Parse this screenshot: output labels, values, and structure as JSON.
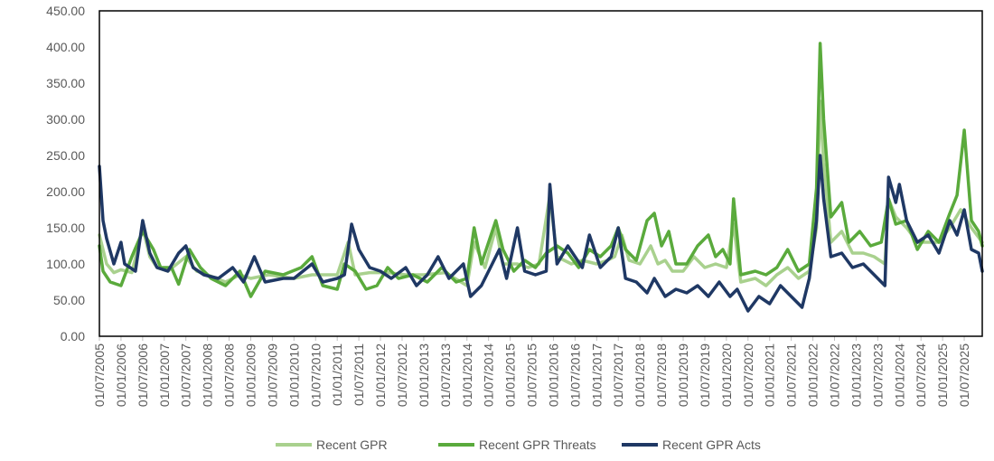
{
  "chart_data": {
    "type": "line",
    "title": "",
    "xlabel": "",
    "ylabel": "",
    "ylim": [
      0,
      450
    ],
    "y_ticks": [
      "0.00",
      "50.00",
      "100.00",
      "150.00",
      "200.00",
      "250.00",
      "300.00",
      "350.00",
      "400.00",
      "450.00"
    ],
    "x_start": "2005-07",
    "x_end": "2025-12",
    "x_tick_labels": [
      "01/07/2005",
      "01/01/2006",
      "01/07/2006",
      "01/01/2007",
      "01/07/2007",
      "01/01/2008",
      "01/07/2008",
      "01/01/2009",
      "01/07/2009",
      "01/01/2010",
      "01/07/2010",
      "01/01/2011",
      "01/07/2011",
      "01/01/2012",
      "01/07/2012",
      "01/01/2013",
      "01/07/2013",
      "01/01/2014",
      "01/07/2014",
      "01/01/2015",
      "01/07/2015",
      "01/01/2016",
      "01/07/2016",
      "01/01/2017",
      "01/07/2017",
      "01/01/2018",
      "01/07/2018",
      "01/01/2019",
      "01/07/2019",
      "01/01/2020",
      "01/07/2020",
      "01/01/2021",
      "01/07/2021",
      "01/01/2022",
      "01/07/2022",
      "01/01/2023",
      "01/07/2023",
      "01/01/2024",
      "01/07/2024",
      "01/01/2025",
      "01/07/2025"
    ],
    "grid": false,
    "legend_position": "bottom",
    "series": [
      {
        "name": "Recent GPR",
        "color": "#a9d18e",
        "points": [
          [
            "2005-07",
            140
          ],
          [
            "2005-09",
            100
          ],
          [
            "2005-11",
            88
          ],
          [
            "2006-01",
            92
          ],
          [
            "2006-04",
            88
          ],
          [
            "2006-07",
            150
          ],
          [
            "2006-09",
            110
          ],
          [
            "2006-11",
            95
          ],
          [
            "2007-02",
            90
          ],
          [
            "2007-07",
            110
          ],
          [
            "2007-10",
            90
          ],
          [
            "2008-01",
            85
          ],
          [
            "2008-06",
            75
          ],
          [
            "2008-10",
            85
          ],
          [
            "2009-01",
            80
          ],
          [
            "2009-06",
            85
          ],
          [
            "2010-01",
            80
          ],
          [
            "2010-06",
            85
          ],
          [
            "2011-01",
            85
          ],
          [
            "2011-04",
            130
          ],
          [
            "2011-06",
            85
          ],
          [
            "2011-10",
            88
          ],
          [
            "2012-03",
            88
          ],
          [
            "2012-08",
            85
          ],
          [
            "2013-01",
            85
          ],
          [
            "2013-07",
            88
          ],
          [
            "2014-01",
            70
          ],
          [
            "2014-03",
            130
          ],
          [
            "2014-06",
            95
          ],
          [
            "2014-09",
            150
          ],
          [
            "2014-11",
            100
          ],
          [
            "2015-03",
            100
          ],
          [
            "2015-06",
            95
          ],
          [
            "2015-09",
            100
          ],
          [
            "2015-12",
            195
          ],
          [
            "2016-02",
            110
          ],
          [
            "2016-06",
            100
          ],
          [
            "2016-09",
            105
          ],
          [
            "2017-01",
            100
          ],
          [
            "2017-04",
            105
          ],
          [
            "2017-06",
            110
          ],
          [
            "2017-08",
            140
          ],
          [
            "2017-10",
            105
          ],
          [
            "2018-01",
            100
          ],
          [
            "2018-04",
            125
          ],
          [
            "2018-06",
            100
          ],
          [
            "2018-08",
            105
          ],
          [
            "2018-10",
            90
          ],
          [
            "2019-01",
            90
          ],
          [
            "2019-04",
            110
          ],
          [
            "2019-07",
            95
          ],
          [
            "2019-10",
            100
          ],
          [
            "2020-01",
            95
          ],
          [
            "2020-03",
            155
          ],
          [
            "2020-05",
            75
          ],
          [
            "2020-09",
            80
          ],
          [
            "2020-12",
            70
          ],
          [
            "2021-03",
            85
          ],
          [
            "2021-06",
            95
          ],
          [
            "2021-09",
            80
          ],
          [
            "2021-12",
            90
          ],
          [
            "2022-02",
            150
          ],
          [
            "2022-03",
            325
          ],
          [
            "2022-04",
            240
          ],
          [
            "2022-06",
            130
          ],
          [
            "2022-09",
            145
          ],
          [
            "2022-12",
            115
          ],
          [
            "2023-03",
            115
          ],
          [
            "2023-06",
            110
          ],
          [
            "2023-09",
            100
          ],
          [
            "2023-10",
            190
          ],
          [
            "2023-12",
            165
          ],
          [
            "2024-03",
            150
          ],
          [
            "2024-06",
            130
          ],
          [
            "2024-09",
            130
          ],
          [
            "2024-12",
            130
          ],
          [
            "2025-03",
            150
          ],
          [
            "2025-06",
            175
          ],
          [
            "2025-09",
            150
          ],
          [
            "2025-12",
            130
          ]
        ]
      },
      {
        "name": "Recent GPR Threats",
        "color": "#5aaa3c",
        "points": [
          [
            "2005-07",
            125
          ],
          [
            "2005-08",
            90
          ],
          [
            "2005-10",
            75
          ],
          [
            "2006-01",
            70
          ],
          [
            "2006-04",
            110
          ],
          [
            "2006-07",
            145
          ],
          [
            "2006-10",
            120
          ],
          [
            "2006-12",
            95
          ],
          [
            "2007-03",
            95
          ],
          [
            "2007-05",
            72
          ],
          [
            "2007-08",
            120
          ],
          [
            "2007-11",
            95
          ],
          [
            "2008-02",
            80
          ],
          [
            "2008-06",
            70
          ],
          [
            "2008-10",
            90
          ],
          [
            "2009-01",
            55
          ],
          [
            "2009-05",
            90
          ],
          [
            "2009-10",
            85
          ],
          [
            "2010-03",
            95
          ],
          [
            "2010-06",
            110
          ],
          [
            "2010-09",
            70
          ],
          [
            "2011-01",
            65
          ],
          [
            "2011-03",
            100
          ],
          [
            "2011-06",
            90
          ],
          [
            "2011-09",
            65
          ],
          [
            "2011-12",
            70
          ],
          [
            "2012-03",
            95
          ],
          [
            "2012-06",
            80
          ],
          [
            "2012-10",
            85
          ],
          [
            "2013-02",
            75
          ],
          [
            "2013-06",
            95
          ],
          [
            "2013-10",
            75
          ],
          [
            "2014-01",
            80
          ],
          [
            "2014-03",
            150
          ],
          [
            "2014-05",
            100
          ],
          [
            "2014-09",
            160
          ],
          [
            "2014-11",
            120
          ],
          [
            "2015-02",
            90
          ],
          [
            "2015-05",
            105
          ],
          [
            "2015-08",
            95
          ],
          [
            "2015-11",
            115
          ],
          [
            "2016-02",
            125
          ],
          [
            "2016-05",
            115
          ],
          [
            "2016-08",
            95
          ],
          [
            "2016-11",
            120
          ],
          [
            "2017-02",
            110
          ],
          [
            "2017-05",
            125
          ],
          [
            "2017-07",
            150
          ],
          [
            "2017-09",
            120
          ],
          [
            "2017-12",
            105
          ],
          [
            "2018-03",
            160
          ],
          [
            "2018-05",
            170
          ],
          [
            "2018-07",
            125
          ],
          [
            "2018-09",
            145
          ],
          [
            "2018-11",
            100
          ],
          [
            "2019-02",
            100
          ],
          [
            "2019-05",
            125
          ],
          [
            "2019-08",
            140
          ],
          [
            "2019-10",
            110
          ],
          [
            "2019-12",
            120
          ],
          [
            "2020-02",
            100
          ],
          [
            "2020-03",
            190
          ],
          [
            "2020-05",
            85
          ],
          [
            "2020-09",
            90
          ],
          [
            "2020-12",
            85
          ],
          [
            "2021-03",
            95
          ],
          [
            "2021-06",
            120
          ],
          [
            "2021-09",
            90
          ],
          [
            "2021-12",
            100
          ],
          [
            "2022-02",
            205
          ],
          [
            "2022-03",
            405
          ],
          [
            "2022-04",
            300
          ],
          [
            "2022-06",
            165
          ],
          [
            "2022-09",
            185
          ],
          [
            "2022-11",
            130
          ],
          [
            "2023-02",
            145
          ],
          [
            "2023-05",
            125
          ],
          [
            "2023-08",
            130
          ],
          [
            "2023-10",
            190
          ],
          [
            "2023-12",
            155
          ],
          [
            "2024-03",
            160
          ],
          [
            "2024-06",
            120
          ],
          [
            "2024-09",
            145
          ],
          [
            "2024-12",
            130
          ],
          [
            "2025-03",
            170
          ],
          [
            "2025-05",
            195
          ],
          [
            "2025-07",
            285
          ],
          [
            "2025-09",
            160
          ],
          [
            "2025-11",
            145
          ],
          [
            "2025-12",
            125
          ]
        ]
      },
      {
        "name": "Recent GPR Acts",
        "color": "#1f3864",
        "points": [
          [
            "2005-07",
            235
          ],
          [
            "2005-08",
            160
          ],
          [
            "2005-09",
            135
          ],
          [
            "2005-11",
            100
          ],
          [
            "2006-01",
            130
          ],
          [
            "2006-02",
            100
          ],
          [
            "2006-05",
            90
          ],
          [
            "2006-07",
            160
          ],
          [
            "2006-09",
            115
          ],
          [
            "2006-11",
            95
          ],
          [
            "2007-02",
            90
          ],
          [
            "2007-05",
            115
          ],
          [
            "2007-07",
            125
          ],
          [
            "2007-09",
            95
          ],
          [
            "2007-12",
            85
          ],
          [
            "2008-04",
            80
          ],
          [
            "2008-08",
            95
          ],
          [
            "2008-11",
            75
          ],
          [
            "2009-02",
            110
          ],
          [
            "2009-05",
            75
          ],
          [
            "2009-10",
            80
          ],
          [
            "2010-01",
            80
          ],
          [
            "2010-06",
            100
          ],
          [
            "2010-09",
            75
          ],
          [
            "2011-01",
            80
          ],
          [
            "2011-03",
            85
          ],
          [
            "2011-05",
            155
          ],
          [
            "2011-07",
            120
          ],
          [
            "2011-10",
            95
          ],
          [
            "2012-01",
            90
          ],
          [
            "2012-04",
            80
          ],
          [
            "2012-08",
            95
          ],
          [
            "2012-11",
            70
          ],
          [
            "2013-02",
            85
          ],
          [
            "2013-05",
            110
          ],
          [
            "2013-08",
            80
          ],
          [
            "2013-12",
            100
          ],
          [
            "2014-02",
            55
          ],
          [
            "2014-05",
            70
          ],
          [
            "2014-08",
            100
          ],
          [
            "2014-10",
            120
          ],
          [
            "2014-12",
            80
          ],
          [
            "2015-03",
            150
          ],
          [
            "2015-05",
            90
          ],
          [
            "2015-08",
            85
          ],
          [
            "2015-11",
            90
          ],
          [
            "2015-12",
            210
          ],
          [
            "2016-02",
            100
          ],
          [
            "2016-05",
            125
          ],
          [
            "2016-09",
            95
          ],
          [
            "2016-11",
            140
          ],
          [
            "2017-02",
            95
          ],
          [
            "2017-05",
            110
          ],
          [
            "2017-07",
            150
          ],
          [
            "2017-09",
            80
          ],
          [
            "2017-12",
            75
          ],
          [
            "2018-03",
            60
          ],
          [
            "2018-05",
            80
          ],
          [
            "2018-08",
            55
          ],
          [
            "2018-11",
            65
          ],
          [
            "2019-02",
            60
          ],
          [
            "2019-05",
            70
          ],
          [
            "2019-08",
            55
          ],
          [
            "2019-11",
            75
          ],
          [
            "2020-02",
            55
          ],
          [
            "2020-04",
            65
          ],
          [
            "2020-07",
            35
          ],
          [
            "2020-10",
            55
          ],
          [
            "2021-01",
            45
          ],
          [
            "2021-04",
            70
          ],
          [
            "2021-07",
            55
          ],
          [
            "2021-10",
            40
          ],
          [
            "2021-12",
            80
          ],
          [
            "2022-02",
            160
          ],
          [
            "2022-03",
            250
          ],
          [
            "2022-04",
            190
          ],
          [
            "2022-06",
            110
          ],
          [
            "2022-09",
            115
          ],
          [
            "2022-12",
            95
          ],
          [
            "2023-03",
            100
          ],
          [
            "2023-06",
            85
          ],
          [
            "2023-09",
            70
          ],
          [
            "2023-10",
            220
          ],
          [
            "2023-12",
            185
          ],
          [
            "2024-01",
            210
          ],
          [
            "2024-03",
            160
          ],
          [
            "2024-06",
            130
          ],
          [
            "2024-09",
            140
          ],
          [
            "2024-12",
            115
          ],
          [
            "2025-03",
            160
          ],
          [
            "2025-05",
            140
          ],
          [
            "2025-07",
            175
          ],
          [
            "2025-09",
            120
          ],
          [
            "2025-11",
            115
          ],
          [
            "2025-12",
            90
          ]
        ]
      }
    ]
  }
}
